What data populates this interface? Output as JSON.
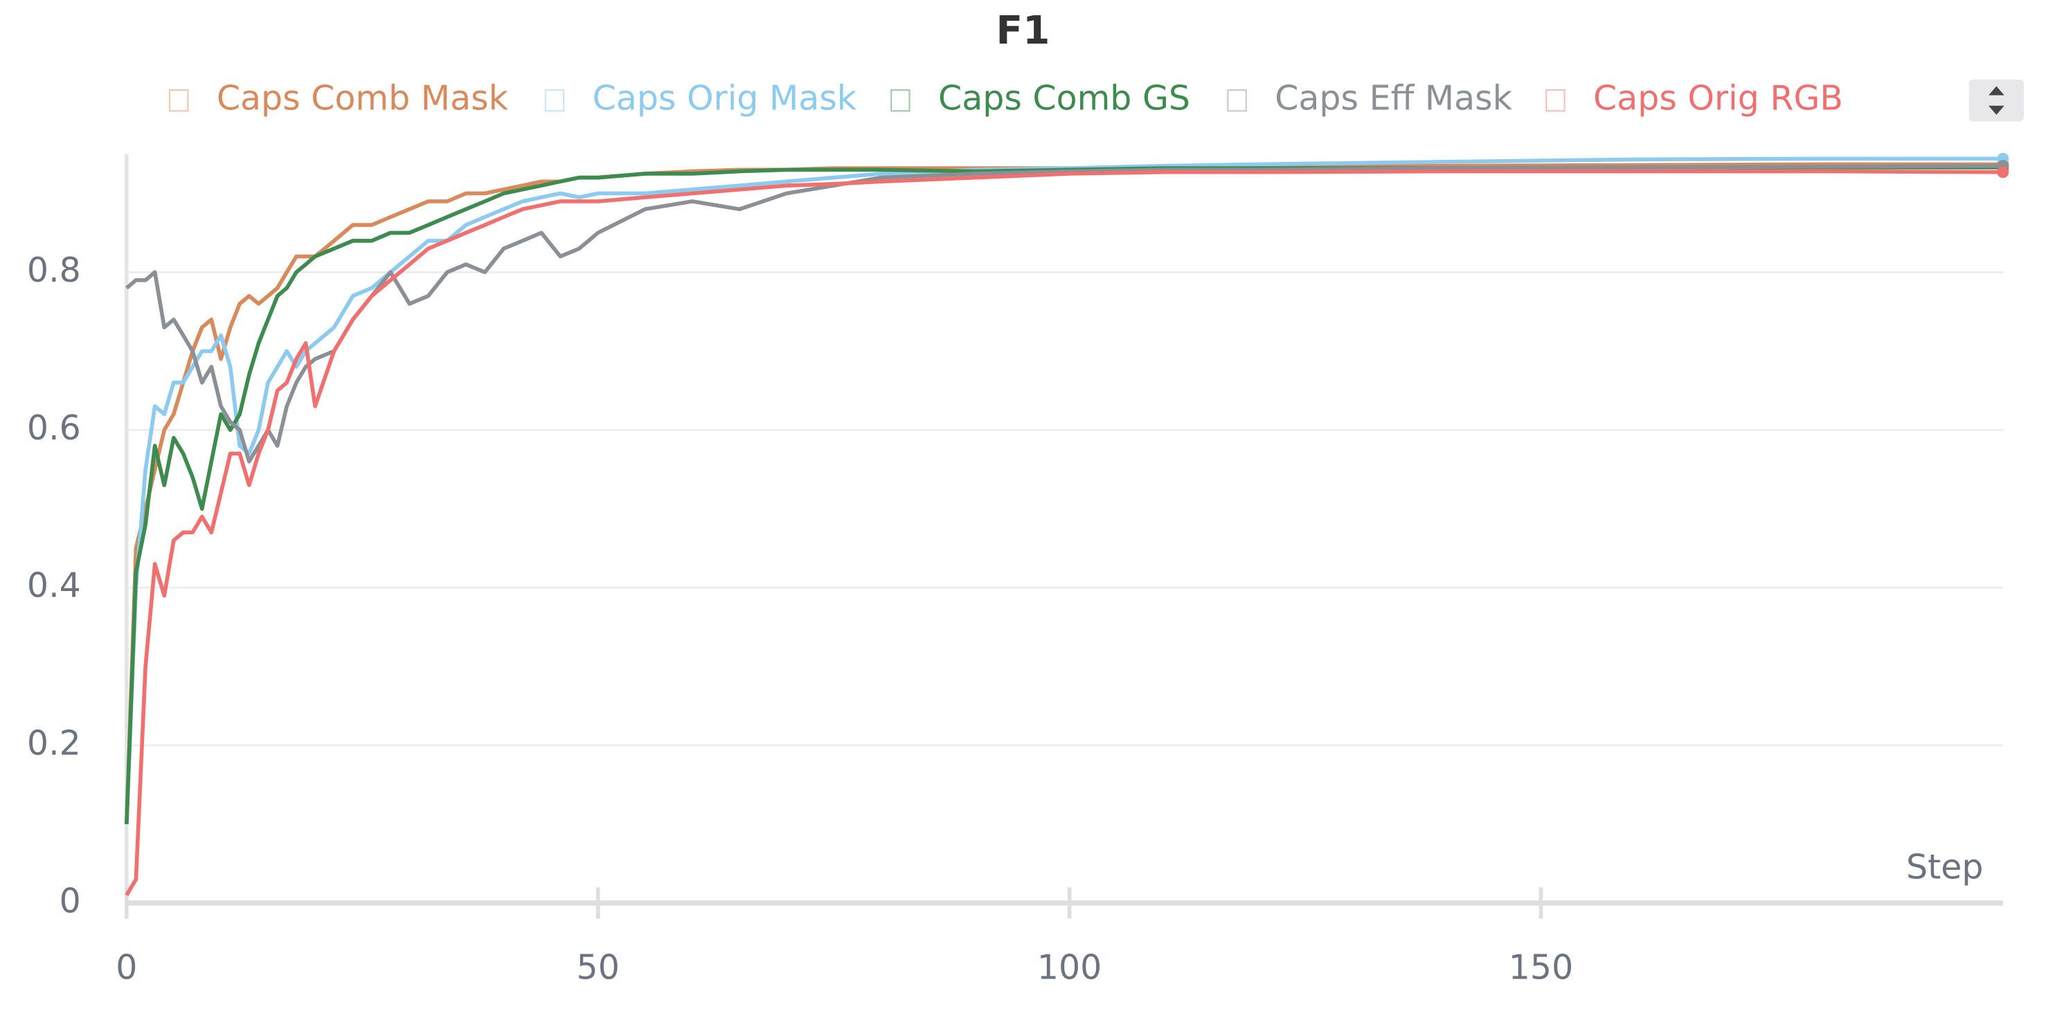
{
  "chart_data": {
    "type": "line",
    "title": "F1",
    "x_label": "Step",
    "x": [
      0,
      1,
      2,
      3,
      4,
      5,
      6,
      7,
      8,
      9,
      10,
      11,
      12,
      13,
      14,
      15,
      16,
      17,
      18,
      19,
      20,
      22,
      24,
      26,
      28,
      30,
      32,
      34,
      36,
      38,
      40,
      42,
      44,
      46,
      48,
      50,
      55,
      60,
      65,
      70,
      75,
      80,
      90,
      100,
      110,
      120,
      140,
      160,
      180,
      199
    ],
    "series": [
      {
        "name": "Caps Comb Mask",
        "color": "#d98a5c",
        "values": [
          0.1,
          0.45,
          0.5,
          0.55,
          0.6,
          0.62,
          0.66,
          0.7,
          0.73,
          0.74,
          0.69,
          0.73,
          0.76,
          0.77,
          0.76,
          0.77,
          0.78,
          0.8,
          0.82,
          0.82,
          0.82,
          0.84,
          0.86,
          0.86,
          0.87,
          0.88,
          0.89,
          0.89,
          0.9,
          0.9,
          0.905,
          0.91,
          0.915,
          0.915,
          0.92,
          0.92,
          0.925,
          0.928,
          0.93,
          0.93,
          0.932,
          0.932,
          0.932,
          0.932,
          0.933,
          0.933,
          0.935,
          0.936,
          0.937,
          0.937
        ]
      },
      {
        "name": "Caps Orig Mask",
        "color": "#8ccaf0",
        "values": [
          0.1,
          0.4,
          0.55,
          0.63,
          0.62,
          0.66,
          0.66,
          0.68,
          0.7,
          0.7,
          0.72,
          0.68,
          0.58,
          0.57,
          0.6,
          0.66,
          0.68,
          0.7,
          0.68,
          0.7,
          0.71,
          0.73,
          0.77,
          0.78,
          0.8,
          0.82,
          0.84,
          0.84,
          0.86,
          0.87,
          0.88,
          0.89,
          0.895,
          0.9,
          0.895,
          0.9,
          0.9,
          0.905,
          0.91,
          0.915,
          0.92,
          0.925,
          0.93,
          0.932,
          0.935,
          0.937,
          0.94,
          0.943,
          0.944,
          0.944
        ]
      },
      {
        "name": "Caps Comb GS",
        "color": "#3d8b4f",
        "values": [
          0.1,
          0.42,
          0.48,
          0.58,
          0.53,
          0.59,
          0.57,
          0.54,
          0.5,
          0.56,
          0.62,
          0.6,
          0.62,
          0.67,
          0.71,
          0.74,
          0.77,
          0.78,
          0.8,
          0.81,
          0.82,
          0.83,
          0.84,
          0.84,
          0.85,
          0.85,
          0.86,
          0.87,
          0.88,
          0.89,
          0.9,
          0.905,
          0.91,
          0.915,
          0.92,
          0.92,
          0.925,
          0.925,
          0.928,
          0.93,
          0.93,
          0.93,
          0.928,
          0.93,
          0.932,
          0.932,
          0.932,
          0.933,
          0.933,
          0.933
        ]
      },
      {
        "name": "Caps Eff Mask",
        "color": "#8a9096",
        "values": [
          0.78,
          0.79,
          0.79,
          0.8,
          0.73,
          0.74,
          0.72,
          0.7,
          0.66,
          0.68,
          0.63,
          0.61,
          0.6,
          0.56,
          0.58,
          0.6,
          0.58,
          0.63,
          0.66,
          0.68,
          0.69,
          0.7,
          0.74,
          0.77,
          0.8,
          0.76,
          0.77,
          0.8,
          0.81,
          0.8,
          0.83,
          0.84,
          0.85,
          0.82,
          0.83,
          0.85,
          0.88,
          0.89,
          0.88,
          0.9,
          0.91,
          0.92,
          0.925,
          0.928,
          0.93,
          0.93,
          0.932,
          0.933,
          0.934,
          0.935
        ]
      },
      {
        "name": "Caps Orig RGB",
        "color": "#f07070",
        "values": [
          0.01,
          0.03,
          0.3,
          0.43,
          0.39,
          0.46,
          0.47,
          0.47,
          0.49,
          0.47,
          0.52,
          0.57,
          0.57,
          0.53,
          0.57,
          0.6,
          0.65,
          0.66,
          0.69,
          0.71,
          0.63,
          0.7,
          0.74,
          0.77,
          0.79,
          0.81,
          0.83,
          0.84,
          0.85,
          0.86,
          0.87,
          0.88,
          0.885,
          0.89,
          0.89,
          0.89,
          0.895,
          0.9,
          0.905,
          0.91,
          0.912,
          0.915,
          0.92,
          0.925,
          0.927,
          0.927,
          0.928,
          0.928,
          0.928,
          0.927
        ]
      }
    ],
    "xlim": [
      0,
      199
    ],
    "ylim": [
      0,
      0.95
    ],
    "xticks": [
      0,
      50,
      100,
      150
    ],
    "yticks": [
      0,
      0.2,
      0.4,
      0.6,
      0.8
    ],
    "grid": true
  }
}
